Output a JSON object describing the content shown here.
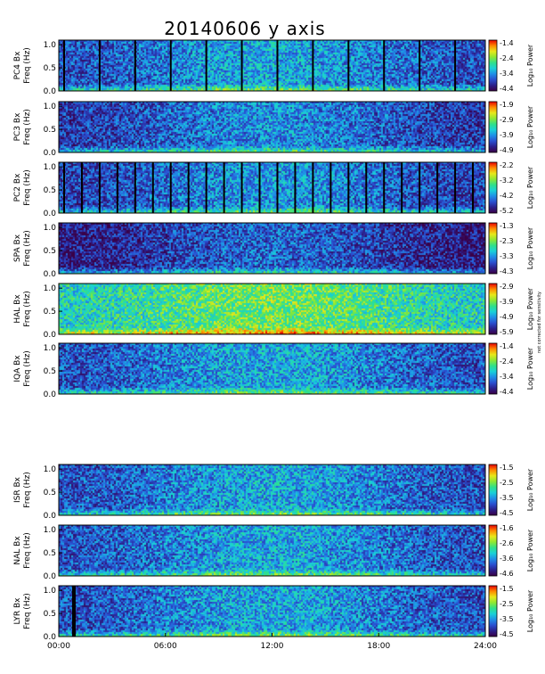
{
  "chart_data": {
    "type": "heatmap",
    "title": "20140606 y axis",
    "x_tick_labels": [
      "00:00",
      "06:00",
      "12:00",
      "18:00",
      "24:00"
    ],
    "x_ticks_hours": [
      0,
      6,
      12,
      18,
      24
    ],
    "xlim_hours": [
      0,
      24
    ],
    "y_tick_labels": [
      "0.0",
      "0.5",
      "1.0"
    ],
    "ylim": [
      0,
      1.1
    ],
    "colorbar_label": "Log₁₀ Power",
    "colors": {
      "scale": [
        "#3a0046",
        "#2b1f8a",
        "#2a4fd0",
        "#1f8fe8",
        "#19d0d8",
        "#2fe08a",
        "#8ee832",
        "#e8e81a",
        "#ff8a00",
        "#e80000"
      ]
    },
    "panels": [
      {
        "station": "PC4",
        "ylabel": "PC4 Bx",
        "ylabel2": "Freq (Hz)",
        "cb_ticks": [
          "-1.4",
          "-2.4",
          "-3.4",
          "-4.4"
        ],
        "base": 0.3,
        "data_gaps_hours": [
          0.3,
          2.3,
          4.3,
          6.3,
          8.3,
          10.3,
          12.3,
          14.3,
          16.3,
          18.3,
          20.3,
          22.3
        ]
      },
      {
        "station": "PC3",
        "ylabel": "PC3 Bx",
        "ylabel2": "Freq (Hz)",
        "cb_ticks": [
          "-1.9",
          "-2.9",
          "-3.9",
          "-4.9"
        ],
        "base": 0.25,
        "data_gaps_hours": []
      },
      {
        "station": "PC2",
        "ylabel": "PC2 Bx",
        "ylabel2": "Freq (Hz)",
        "cb_ticks": [
          "-2.2",
          "-3.2",
          "-4.2",
          "-5.2"
        ],
        "base": 0.27,
        "data_gaps_hours": [
          0.3,
          1.3,
          2.3,
          3.3,
          4.3,
          5.3,
          6.3,
          7.3,
          8.3,
          9.3,
          10.3,
          11.3,
          12.3,
          13.3,
          14.3,
          15.3,
          16.3,
          17.3,
          18.3,
          19.3,
          20.3,
          21.3,
          22.3,
          23.3
        ]
      },
      {
        "station": "SPA",
        "ylabel": "SPA Bx",
        "ylabel2": "Freq (Hz)",
        "cb_ticks": [
          "-1.3",
          "-2.3",
          "-3.3",
          "-4.3"
        ],
        "base": 0.18,
        "data_gaps_hours": []
      },
      {
        "station": "HAL",
        "ylabel": "HAL Bx",
        "ylabel2": "Freq (Hz)",
        "cb_ticks": [
          "-2.9",
          "-3.9",
          "-4.9",
          "-5.9"
        ],
        "base": 0.55,
        "data_gaps_hours": [],
        "note": "not corrected for sensitivity"
      },
      {
        "station": "IQA",
        "ylabel": "IQA Bx",
        "ylabel2": "Freq (Hz)",
        "cb_ticks": [
          "-1.4",
          "-2.4",
          "-3.4",
          "-4.4"
        ],
        "base": 0.3,
        "data_gaps_hours": []
      },
      {
        "station": "ISR",
        "ylabel": "ISR Bx",
        "ylabel2": "Freq (Hz)",
        "cb_ticks": [
          "-1.5",
          "-2.5",
          "-3.5",
          "-4.5"
        ],
        "base": 0.3,
        "data_gaps_hours": []
      },
      {
        "station": "NAL",
        "ylabel": "NAL Bx",
        "ylabel2": "Freq (Hz)",
        "cb_ticks": [
          "-1.6",
          "-2.6",
          "-3.6",
          "-4.6"
        ],
        "base": 0.3,
        "data_gaps_hours": []
      },
      {
        "station": "LYR",
        "ylabel": "LYR Bx",
        "ylabel2": "Freq (Hz)",
        "cb_ticks": [
          "-1.5",
          "-2.5",
          "-3.5",
          "-4.5"
        ],
        "base": 0.3,
        "data_gaps_hours": [
          0.8,
          0.9
        ]
      }
    ]
  }
}
